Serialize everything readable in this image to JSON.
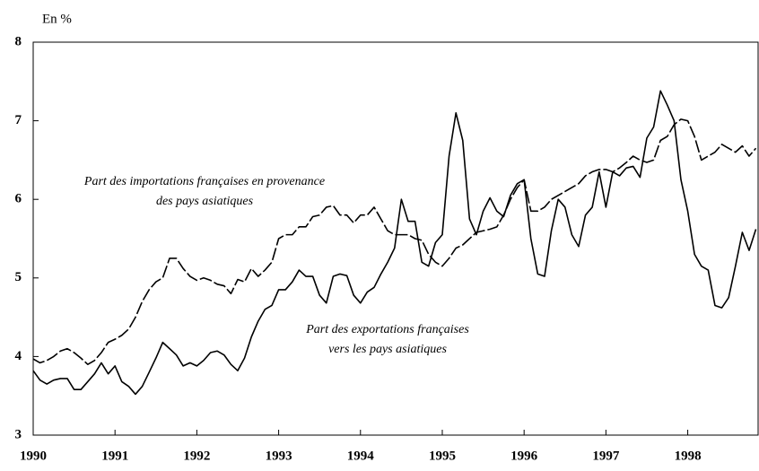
{
  "chart_data": {
    "type": "line",
    "y_axis_label": "En %",
    "annotations": [
      "Part des importations françaises en provenance",
      "des pays asiatiques",
      "Part des exportations françaises",
      "vers les pays asiatiques"
    ],
    "x": [
      1990,
      1990.083,
      1990.167,
      1990.25,
      1990.333,
      1990.417,
      1990.5,
      1990.583,
      1990.667,
      1990.75,
      1990.833,
      1990.917,
      1991,
      1991.083,
      1991.167,
      1991.25,
      1991.333,
      1991.417,
      1991.5,
      1991.583,
      1991.667,
      1991.75,
      1991.833,
      1991.917,
      1992,
      1992.083,
      1992.167,
      1992.25,
      1992.333,
      1992.417,
      1992.5,
      1992.583,
      1992.667,
      1992.75,
      1992.833,
      1992.917,
      1993,
      1993.083,
      1993.167,
      1993.25,
      1993.333,
      1993.417,
      1993.5,
      1993.583,
      1993.667,
      1993.75,
      1993.833,
      1993.917,
      1994,
      1994.083,
      1994.167,
      1994.25,
      1994.333,
      1994.417,
      1994.5,
      1994.583,
      1994.667,
      1994.75,
      1994.833,
      1994.917,
      1995,
      1995.083,
      1995.167,
      1995.25,
      1995.333,
      1995.417,
      1995.5,
      1995.583,
      1995.667,
      1995.75,
      1995.833,
      1995.917,
      1996,
      1996.083,
      1996.167,
      1996.25,
      1996.333,
      1996.417,
      1996.5,
      1996.583,
      1996.667,
      1996.75,
      1996.833,
      1996.917,
      1997,
      1997.083,
      1997.167,
      1997.25,
      1997.333,
      1997.417,
      1997.5,
      1997.583,
      1997.667,
      1997.75,
      1997.833,
      1997.917,
      1998,
      1998.083,
      1998.167,
      1998.25,
      1998.333,
      1998.417,
      1998.5,
      1998.583,
      1998.667,
      1998.75,
      1998.833
    ],
    "series": [
      {
        "name": "Part des importations françaises en provenance des pays asiatiques",
        "color": "#000000",
        "dashed": true,
        "values": [
          3.97,
          3.92,
          3.95,
          4.0,
          4.07,
          4.1,
          4.05,
          3.98,
          3.9,
          3.95,
          4.05,
          4.18,
          4.22,
          4.27,
          4.35,
          4.5,
          4.7,
          4.85,
          4.95,
          5.0,
          5.25,
          5.25,
          5.12,
          5.02,
          4.97,
          5.0,
          4.97,
          4.92,
          4.9,
          4.8,
          4.98,
          4.95,
          5.12,
          5.02,
          5.1,
          5.2,
          5.5,
          5.55,
          5.55,
          5.65,
          5.65,
          5.78,
          5.8,
          5.9,
          5.92,
          5.8,
          5.8,
          5.7,
          5.8,
          5.8,
          5.9,
          5.75,
          5.6,
          5.55,
          5.55,
          5.55,
          5.5,
          5.48,
          5.3,
          5.2,
          5.15,
          5.25,
          5.38,
          5.42,
          5.5,
          5.58,
          5.6,
          5.62,
          5.65,
          5.8,
          6.0,
          6.15,
          6.25,
          5.85,
          5.85,
          5.9,
          6.0,
          6.05,
          6.1,
          6.15,
          6.2,
          6.3,
          6.35,
          6.38,
          6.38,
          6.35,
          6.4,
          6.47,
          6.55,
          6.5,
          6.47,
          6.5,
          6.75,
          6.8,
          6.95,
          7.02,
          7.0,
          6.8,
          6.5,
          6.55,
          6.6,
          6.7,
          6.65,
          6.6,
          6.68,
          6.55,
          6.65
        ]
      },
      {
        "name": "Part des exportations françaises vers les pays asiatiques",
        "color": "#000000",
        "dashed": false,
        "values": [
          3.82,
          3.7,
          3.65,
          3.7,
          3.72,
          3.72,
          3.58,
          3.58,
          3.68,
          3.78,
          3.92,
          3.78,
          3.88,
          3.68,
          3.62,
          3.52,
          3.62,
          3.8,
          3.98,
          4.18,
          4.1,
          4.02,
          3.88,
          3.92,
          3.88,
          3.95,
          4.05,
          4.07,
          4.02,
          3.9,
          3.82,
          3.98,
          4.25,
          4.45,
          4.6,
          4.65,
          4.85,
          4.85,
          4.95,
          5.1,
          5.02,
          5.02,
          4.78,
          4.68,
          5.02,
          5.05,
          5.03,
          4.78,
          4.68,
          4.82,
          4.88,
          5.05,
          5.2,
          5.38,
          6.0,
          5.72,
          5.72,
          5.2,
          5.15,
          5.45,
          5.55,
          6.55,
          7.1,
          6.75,
          5.75,
          5.55,
          5.85,
          6.02,
          5.85,
          5.78,
          6.05,
          6.2,
          6.25,
          5.5,
          5.05,
          5.02,
          5.6,
          6.0,
          5.9,
          5.55,
          5.4,
          5.8,
          5.9,
          6.35,
          5.9,
          6.35,
          6.3,
          6.4,
          6.42,
          6.28,
          6.78,
          6.92,
          7.38,
          7.2,
          7.0,
          6.25,
          5.85,
          5.3,
          5.15,
          5.1,
          4.65,
          4.62,
          4.75,
          5.15,
          5.58,
          5.35,
          5.62
        ]
      }
    ],
    "xlim": [
      1990,
      1998.86
    ],
    "xticks": [
      1990,
      1991,
      1992,
      1993,
      1994,
      1995,
      1996,
      1997,
      1998
    ],
    "ylim": [
      3,
      8
    ],
    "yticks": [
      3,
      4,
      5,
      6,
      7,
      8
    ],
    "grid": false
  }
}
